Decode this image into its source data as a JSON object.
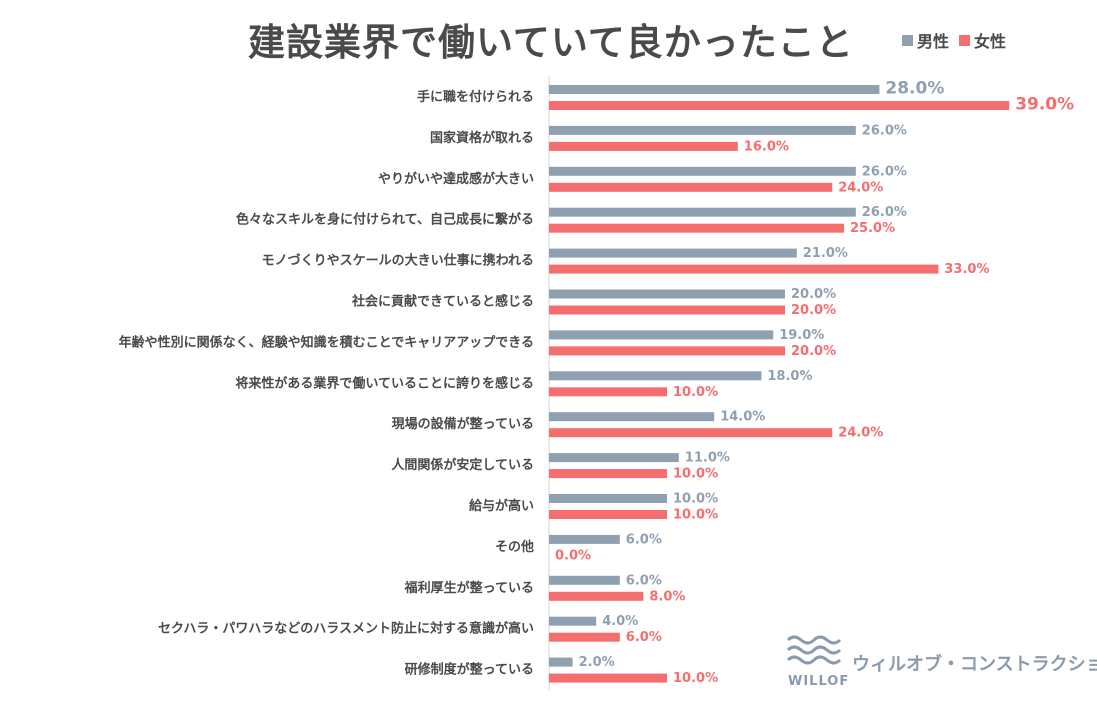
{
  "title": "建設業界で働いていて良かったこと",
  "legend": [
    {
      "label": "男性",
      "color": "#8fa0b0"
    },
    {
      "label": "女性",
      "color": "#f56e6e"
    }
  ],
  "logo": {
    "name": "ウィルオブ・コンストラクション",
    "word": "WILLOF"
  },
  "chart_data": {
    "type": "bar",
    "orientation": "horizontal",
    "title": "建設業界で働いていて良かったこと",
    "xlim": [
      0,
      40
    ],
    "categories": [
      "手に職を付けられる",
      "国家資格が取れる",
      "やりがいや達成感が大きい",
      "色々なスキルを身に付けられて、自己成長に繋がる",
      "モノづくりやスケールの大きい仕事に携われる",
      "社会に貢献できていると感じる",
      "年齢や性別に関係なく、経験や知識を積むことでキャリアアップできる",
      "将来性がある業界で働いていることに誇りを感じる",
      "現場の設備が整っている",
      "人間関係が安定している",
      "給与が高い",
      "その他",
      "福利厚生が整っている",
      "セクハラ・パワハラなどのハラスメント防止に対する意識が高い",
      "研修制度が整っている"
    ],
    "series": [
      {
        "name": "男性",
        "color": "#8fa0b0",
        "values": [
          28.0,
          26.0,
          26.0,
          26.0,
          21.0,
          20.0,
          19.0,
          18.0,
          14.0,
          11.0,
          10.0,
          6.0,
          6.0,
          4.0,
          2.0
        ],
        "labels": [
          "28.0%",
          "26.0%",
          "26.0%",
          "26.0%",
          "21.0%",
          "20.0%",
          "19.0%",
          "18.0%",
          "14.0%",
          "11.0%",
          "10.0%",
          "6.0%",
          "6.0%",
          "4.0%",
          "2.0%"
        ]
      },
      {
        "name": "女性",
        "color": "#f56e6e",
        "values": [
          39.0,
          16.0,
          24.0,
          25.0,
          33.0,
          20.0,
          20.0,
          10.0,
          24.0,
          10.0,
          10.0,
          0.0,
          8.0,
          6.0,
          10.0
        ],
        "labels": [
          "39.0%",
          "16.0%",
          "24.0%",
          "25.0%",
          "33.0%",
          "20.0%",
          "20.0%",
          "10.0%",
          "24.0%",
          "10.0%",
          "10.0%",
          "0.0%",
          "8.0%",
          "6.0%",
          "10.0%"
        ]
      }
    ],
    "label_color": "#8fa0b0",
    "label_color_female": "#f56e6e",
    "category_color": "#4a4a4a"
  }
}
